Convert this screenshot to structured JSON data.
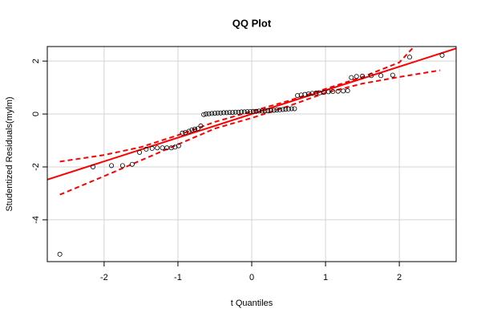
{
  "chart_data": {
    "type": "qq",
    "title": "QQ Plot",
    "x_label": "t Quantiles",
    "y_label": "Studentized Residuals(mylm)",
    "xlim": [
      -2.77,
      2.77
    ],
    "ylim": [
      -5.58,
      2.55
    ],
    "xticks": [
      -2,
      -1,
      0,
      1,
      2
    ],
    "yticks": [
      -4,
      -2,
      0,
      2
    ],
    "grid": true,
    "points": {
      "color": "#000000",
      "x": [
        -2.6,
        -2.15,
        -1.9,
        -1.75,
        -1.62,
        -1.52,
        -1.43,
        -1.35,
        -1.28,
        -1.21,
        -1.15,
        -1.09,
        -1.04,
        -0.99,
        -0.94,
        -0.9,
        -0.85,
        -0.81,
        -0.77,
        -0.73,
        -0.69,
        -0.65,
        -0.62,
        -0.58,
        -0.54,
        -0.5,
        -0.46,
        -0.42,
        -0.38,
        -0.34,
        -0.3,
        -0.26,
        -0.22,
        -0.18,
        -0.14,
        -0.1,
        -0.06,
        -0.02,
        0.02,
        0.06,
        0.1,
        0.14,
        0.18,
        0.22,
        0.26,
        0.3,
        0.34,
        0.38,
        0.42,
        0.46,
        0.5,
        0.54,
        0.58,
        0.62,
        0.67,
        0.72,
        0.77,
        0.82,
        0.87,
        0.92,
        0.98,
        1.04,
        1.1,
        1.17,
        1.24,
        1.3,
        1.35,
        1.42,
        1.5,
        1.62,
        1.75,
        1.91,
        2.14,
        2.58
      ],
      "y": [
        -5.3,
        -2.0,
        -1.95,
        -1.95,
        -1.9,
        -1.45,
        -1.33,
        -1.3,
        -1.28,
        -1.28,
        -1.28,
        -1.28,
        -1.25,
        -1.2,
        -0.72,
        -0.7,
        -0.65,
        -0.6,
        -0.57,
        -0.55,
        -0.45,
        -0.02,
        0.0,
        0.01,
        0.02,
        0.03,
        0.04,
        0.04,
        0.05,
        0.05,
        0.06,
        0.06,
        0.07,
        0.07,
        0.08,
        0.08,
        0.09,
        0.09,
        0.1,
        0.1,
        0.11,
        0.11,
        0.12,
        0.12,
        0.13,
        0.14,
        0.15,
        0.16,
        0.17,
        0.18,
        0.19,
        0.2,
        0.2,
        0.7,
        0.72,
        0.74,
        0.76,
        0.78,
        0.79,
        0.8,
        0.82,
        0.84,
        0.85,
        0.86,
        0.87,
        0.88,
        1.38,
        1.42,
        1.43,
        1.45,
        1.45,
        1.47,
        2.15,
        2.22
      ]
    },
    "reference_line": {
      "color": "#ff0000",
      "x": [
        -2.77,
        2.77
      ],
      "y": [
        -2.48,
        2.48
      ]
    },
    "upper_band": {
      "color": "#ff0000",
      "x": [
        -2.6,
        -2.0,
        -1.5,
        -1.0,
        -0.5,
        0.0,
        0.5,
        1.0,
        1.5,
        2.0,
        2.2
      ],
      "y": [
        -1.8,
        -1.55,
        -1.25,
        -0.8,
        -0.3,
        0.1,
        0.5,
        0.95,
        1.4,
        1.95,
        2.55
      ]
    },
    "lower_band": {
      "color": "#ff0000",
      "x": [
        -2.6,
        -2.0,
        -1.5,
        -1.0,
        -0.5,
        0.0,
        0.5,
        1.0,
        1.5,
        2.0,
        2.55
      ],
      "y": [
        -3.05,
        -2.35,
        -1.75,
        -1.15,
        -0.55,
        -0.15,
        0.3,
        0.8,
        1.15,
        1.4,
        1.65
      ]
    }
  }
}
